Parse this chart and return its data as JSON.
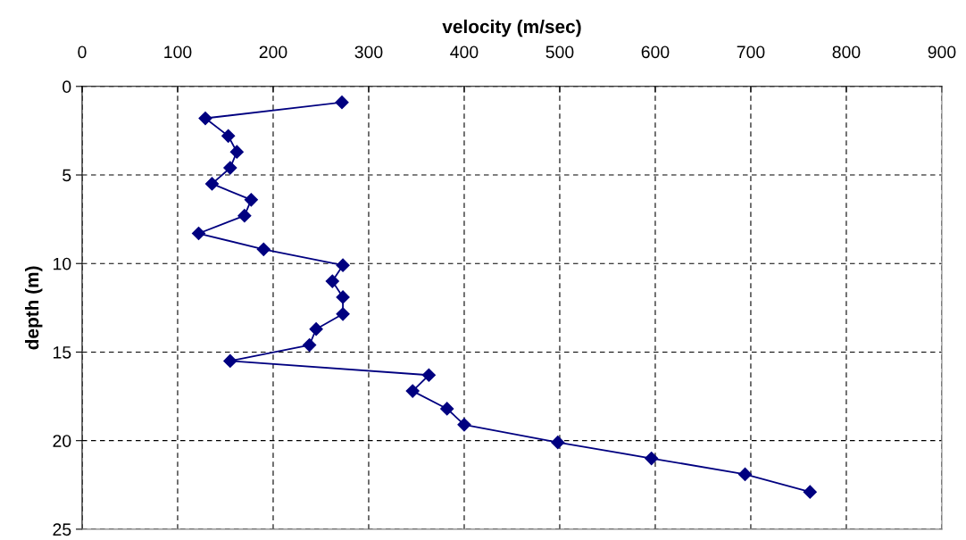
{
  "chart_data": {
    "type": "line",
    "xlabel": "velocity (m/sec)",
    "ylabel": "depth (m)",
    "xlim": [
      0,
      900
    ],
    "xticks": [
      0,
      100,
      200,
      300,
      400,
      500,
      600,
      700,
      800,
      900
    ],
    "ylim": [
      25,
      0
    ],
    "yticks": [
      0,
      5,
      10,
      15,
      20,
      25
    ],
    "grid": true,
    "marker": "diamond",
    "line_style": "solid",
    "series": [
      {
        "color": "#000080",
        "x": [
          272,
          129,
          153,
          162,
          155,
          136,
          177,
          170,
          122,
          190,
          273,
          262,
          273,
          273,
          245,
          238,
          155,
          363,
          346,
          382,
          400,
          498,
          596,
          694,
          762
        ],
        "values": [
          0.9,
          1.8,
          2.8,
          3.7,
          4.6,
          5.5,
          6.4,
          7.3,
          8.3,
          9.2,
          10.1,
          11.0,
          11.9,
          12.85,
          13.7,
          14.6,
          15.5,
          16.3,
          17.2,
          18.2,
          19.1,
          20.1,
          21.0,
          21.9,
          22.9
        ]
      }
    ]
  }
}
